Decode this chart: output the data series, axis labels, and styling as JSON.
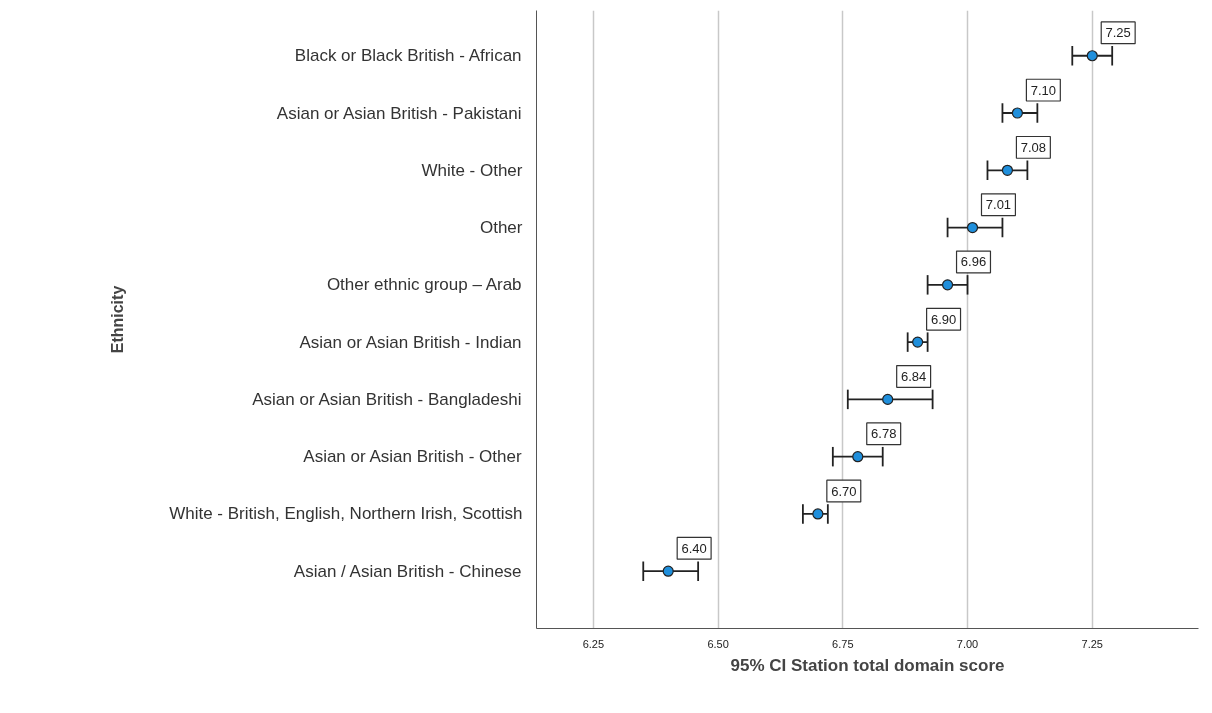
{
  "chart_data": {
    "type": "scatter",
    "orientation": "horizontal",
    "categories": [
      "Black or Black British - African",
      "Asian or Asian British - Pakistani",
      "White - Other",
      "Other",
      "Other ethnic group – Arab",
      "Asian or Asian British - Indian",
      "Asian or Asian British - Bangladeshi",
      "Asian or Asian British - Other",
      "White - British, English, Northern Irish, Scottish",
      "Asian / Asian British - Chinese"
    ],
    "values": [
      7.25,
      7.1,
      7.08,
      7.01,
      6.96,
      6.9,
      6.84,
      6.78,
      6.7,
      6.4
    ],
    "errors": [
      [
        7.21,
        7.29
      ],
      [
        7.07,
        7.14
      ],
      [
        7.04,
        7.12
      ],
      [
        6.96,
        7.07
      ],
      [
        6.92,
        7.0
      ],
      [
        6.88,
        6.92
      ],
      [
        6.76,
        6.93
      ],
      [
        6.73,
        6.83
      ],
      [
        6.67,
        6.72
      ],
      [
        6.35,
        6.46
      ]
    ],
    "value_labels": [
      "7.25",
      "7.10",
      "7.08",
      "7.01",
      "6.96",
      "6.90",
      "6.84",
      "6.78",
      "6.70",
      "6.40"
    ],
    "color": "#1f8fdc",
    "marker": "circle",
    "xlabel": "95% CI Station total domain score",
    "ylabel": "Ethnicity",
    "xlim": [
      6.136,
      7.463
    ],
    "xticks": [
      6.25,
      {
        "value": 6.5,
        "label": "6.50"
      },
      6.75,
      {
        "value": 7.0,
        "label": "7.00"
      },
      7.25
    ],
    "grid": "x"
  }
}
